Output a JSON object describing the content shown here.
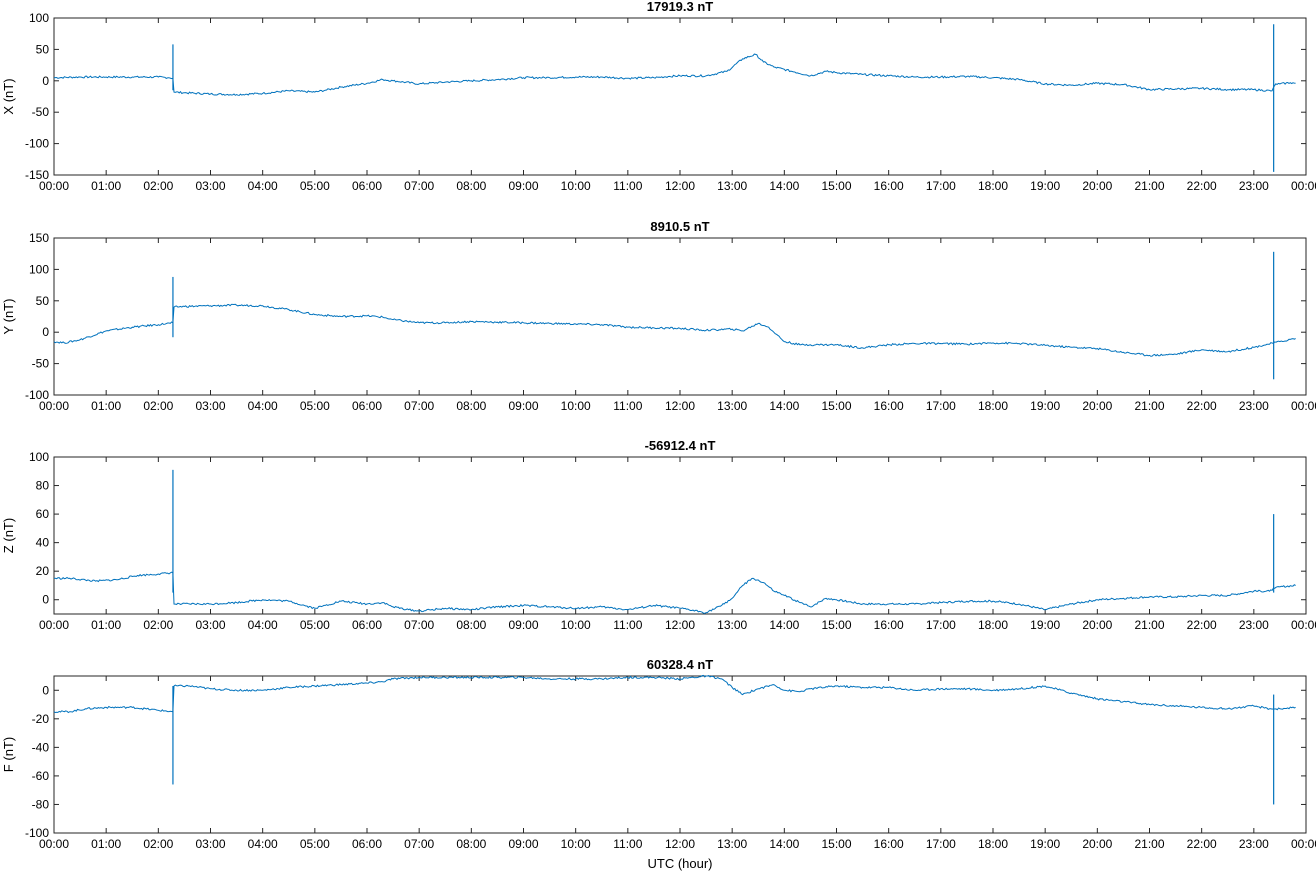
{
  "chart_data": [
    {
      "type": "line",
      "title": "17919.3 nT",
      "ylabel": "X (nT)",
      "xlabel": "",
      "ylim": [
        -150,
        100
      ],
      "yticks": [
        -150,
        -100,
        -50,
        0,
        50,
        100
      ],
      "xlim": [
        0,
        24
      ],
      "xticks": [
        0,
        1,
        2,
        3,
        4,
        5,
        6,
        7,
        8,
        9,
        10,
        11,
        12,
        13,
        14,
        15,
        16,
        17,
        18,
        19,
        20,
        21,
        22,
        23,
        24
      ],
      "xtick_labels": [
        "00:00",
        "01:00",
        "02:00",
        "03:00",
        "04:00",
        "05:00",
        "06:00",
        "07:00",
        "08:00",
        "09:00",
        "10:00",
        "11:00",
        "12:00",
        "13:00",
        "14:00",
        "15:00",
        "16:00",
        "17:00",
        "18:00",
        "19:00",
        "20:00",
        "21:00",
        "22:00",
        "23:00",
        "00:00"
      ],
      "series_color": "#0072bd",
      "x": [
        0,
        0.5,
        1,
        1.5,
        2,
        2.2,
        2.28,
        2.3,
        2.5,
        3,
        3.5,
        4,
        4.5,
        5,
        5.2,
        5.5,
        6,
        6.3,
        6.5,
        7,
        7.5,
        8,
        8.5,
        9,
        9.5,
        10,
        10.5,
        11,
        11.5,
        11.8,
        12,
        12.5,
        12.9,
        13.2,
        13.45,
        13.6,
        13.8,
        14.2,
        14.5,
        14.8,
        15,
        15.5,
        16,
        16.5,
        17,
        17.5,
        18,
        18.5,
        19,
        19.5,
        20,
        20.5,
        21,
        21.5,
        22,
        22.5,
        23,
        23.35,
        23.42,
        23.5,
        23.7,
        23.8
      ],
      "y": [
        5,
        6,
        6,
        6,
        6,
        5,
        4,
        -18,
        -19,
        -21,
        -22,
        -20,
        -16,
        -18,
        -15,
        -10,
        -4,
        2,
        0,
        -5,
        -2,
        0,
        2,
        5,
        5,
        6,
        6,
        4,
        5,
        7,
        8,
        8,
        15,
        35,
        42,
        30,
        22,
        14,
        8,
        15,
        13,
        10,
        8,
        6,
        6,
        7,
        5,
        2,
        -5,
        -7,
        -4,
        -6,
        -14,
        -13,
        -12,
        -14,
        -14,
        -16,
        -5,
        -5,
        -3,
        -4
      ],
      "spikes": [
        {
          "x": 2.28,
          "low": -15,
          "high": 58
        },
        {
          "x": 23.38,
          "low": -145,
          "high": 90
        }
      ]
    },
    {
      "type": "line",
      "title": "8910.5 nT",
      "ylabel": "Y (nT)",
      "xlabel": "",
      "ylim": [
        -100,
        150
      ],
      "yticks": [
        -100,
        -50,
        0,
        50,
        100,
        150
      ],
      "xlim": [
        0,
        24
      ],
      "xticks": [
        0,
        1,
        2,
        3,
        4,
        5,
        6,
        7,
        8,
        9,
        10,
        11,
        12,
        13,
        14,
        15,
        16,
        17,
        18,
        19,
        20,
        21,
        22,
        23,
        24
      ],
      "xtick_labels": [
        "00:00",
        "01:00",
        "02:00",
        "03:00",
        "04:00",
        "05:00",
        "06:00",
        "07:00",
        "08:00",
        "09:00",
        "10:00",
        "11:00",
        "12:00",
        "13:00",
        "14:00",
        "15:00",
        "16:00",
        "17:00",
        "18:00",
        "19:00",
        "20:00",
        "21:00",
        "22:00",
        "23:00",
        "00:00"
      ],
      "series_color": "#0072bd",
      "x": [
        0,
        0.2,
        0.5,
        1,
        1.5,
        2,
        2.28,
        2.3,
        2.5,
        3,
        3.5,
        4,
        4.5,
        5,
        5.5,
        6,
        6.3,
        6.5,
        7,
        7.5,
        8,
        8.5,
        9,
        9.5,
        10,
        10.5,
        11,
        11.5,
        12,
        12.5,
        13,
        13.2,
        13.5,
        13.7,
        14,
        14.3,
        14.5,
        15,
        15.5,
        16,
        16.5,
        17,
        17.5,
        18,
        18.5,
        19,
        19.5,
        20,
        20.5,
        21,
        21.5,
        22,
        22.5,
        23,
        23.5,
        23.8
      ],
      "y": [
        -15,
        -17,
        -12,
        2,
        8,
        12,
        15,
        40,
        41,
        42,
        43,
        42,
        36,
        28,
        25,
        26,
        24,
        20,
        15,
        15,
        17,
        16,
        15,
        14,
        13,
        12,
        8,
        7,
        6,
        3,
        5,
        2,
        14,
        8,
        -15,
        -20,
        -20,
        -20,
        -25,
        -20,
        -18,
        -18,
        -19,
        -17,
        -18,
        -21,
        -24,
        -26,
        -32,
        -37,
        -35,
        -28,
        -31,
        -24,
        -15,
        -10
      ],
      "spikes": [
        {
          "x": 2.28,
          "low": -8,
          "high": 88
        },
        {
          "x": 23.38,
          "low": -75,
          "high": 128
        }
      ]
    },
    {
      "type": "line",
      "title": "-56912.4 nT",
      "ylabel": "Z (nT)",
      "xlabel": "",
      "ylim": [
        -10,
        100
      ],
      "yticks": [
        0,
        20,
        40,
        60,
        80,
        100
      ],
      "xlim": [
        0,
        24
      ],
      "xticks": [
        0,
        1,
        2,
        3,
        4,
        5,
        6,
        7,
        8,
        9,
        10,
        11,
        12,
        13,
        14,
        15,
        16,
        17,
        18,
        19,
        20,
        21,
        22,
        23,
        24
      ],
      "xtick_labels": [
        "00:00",
        "01:00",
        "02:00",
        "03:00",
        "04:00",
        "05:00",
        "06:00",
        "07:00",
        "08:00",
        "09:00",
        "10:00",
        "11:00",
        "12:00",
        "13:00",
        "14:00",
        "15:00",
        "16:00",
        "17:00",
        "18:00",
        "19:00",
        "20:00",
        "21:00",
        "22:00",
        "23:00",
        "00:00"
      ],
      "series_color": "#0072bd",
      "x": [
        0,
        0.3,
        0.8,
        1.2,
        1.6,
        2,
        2.28,
        2.3,
        2.6,
        3,
        3.5,
        4,
        4.5,
        5,
        5.2,
        5.5,
        6,
        6.3,
        6.5,
        6.8,
        7,
        7.5,
        8,
        8.5,
        9,
        9.5,
        10,
        10.5,
        11,
        11.5,
        12,
        12.5,
        12.8,
        13,
        13.2,
        13.4,
        13.6,
        13.8,
        14,
        14.3,
        14.5,
        14.8,
        15,
        15.5,
        16,
        16.5,
        17,
        17.5,
        18,
        18.5,
        19,
        19.5,
        20,
        20.5,
        21,
        21.5,
        22,
        22.5,
        23,
        23.3,
        23.4,
        23.5,
        23.8
      ],
      "y": [
        15,
        15,
        13,
        14,
        17,
        18,
        19,
        -3,
        -3,
        -3,
        -2,
        0,
        -1,
        -6,
        -4,
        -1,
        -3,
        -2,
        -5,
        -7,
        -8,
        -6,
        -7,
        -5,
        -4,
        -5,
        -6,
        -5,
        -7,
        -4,
        -6,
        -9,
        -4,
        1,
        10,
        15,
        12,
        6,
        3,
        -2,
        -5,
        1,
        0,
        -3,
        -3,
        -3,
        -2,
        -1,
        -1,
        -3,
        -7,
        -3,
        0,
        1,
        2,
        2,
        3,
        3,
        6,
        6,
        8,
        9,
        10
      ],
      "spikes": [
        {
          "x": 2.28,
          "low": 5,
          "high": 91
        },
        {
          "x": 23.38,
          "low": 5,
          "high": 60
        }
      ]
    },
    {
      "type": "line",
      "title": "60328.4 nT",
      "ylabel": "F (nT)",
      "xlabel": "UTC (hour)",
      "ylim": [
        -100,
        10
      ],
      "yticks": [
        -100,
        -80,
        -60,
        -40,
        -20,
        0
      ],
      "xlim": [
        0,
        24
      ],
      "xticks": [
        0,
        1,
        2,
        3,
        4,
        5,
        6,
        7,
        8,
        9,
        10,
        11,
        12,
        13,
        14,
        15,
        16,
        17,
        18,
        19,
        20,
        21,
        22,
        23,
        24
      ],
      "xtick_labels": [
        "00:00",
        "01:00",
        "02:00",
        "03:00",
        "04:00",
        "05:00",
        "06:00",
        "07:00",
        "08:00",
        "09:00",
        "10:00",
        "11:00",
        "12:00",
        "13:00",
        "14:00",
        "15:00",
        "16:00",
        "17:00",
        "18:00",
        "19:00",
        "20:00",
        "21:00",
        "22:00",
        "23:00",
        "00:00"
      ],
      "series_color": "#0072bd",
      "x": [
        0,
        0.3,
        0.6,
        1,
        1.5,
        2,
        2.28,
        2.3,
        2.6,
        3,
        3.5,
        4,
        4.5,
        5,
        5.5,
        6,
        6.3,
        6.5,
        7,
        7.5,
        8,
        8.5,
        9,
        9.5,
        10,
        10.5,
        11,
        11.5,
        12,
        12.5,
        12.8,
        13,
        13.2,
        13.5,
        13.8,
        14,
        14.3,
        14.5,
        15,
        15.5,
        16,
        16.5,
        17,
        17.5,
        18,
        18.5,
        19,
        19.5,
        20,
        20.5,
        21,
        21.5,
        22,
        22.5,
        23,
        23.3,
        23.5,
        23.8
      ],
      "y": [
        -15,
        -15,
        -13,
        -12,
        -12,
        -14,
        -15,
        3,
        3,
        1,
        0,
        0,
        2,
        3,
        4,
        5,
        6,
        8,
        9,
        9,
        9,
        9,
        9,
        8,
        8,
        8,
        9,
        9,
        8,
        10,
        8,
        2,
        -3,
        1,
        4,
        0,
        -1,
        1,
        3,
        2,
        2,
        0,
        1,
        1,
        0,
        1,
        3,
        -2,
        -6,
        -8,
        -10,
        -11,
        -12,
        -13,
        -11,
        -13,
        -13,
        -12
      ],
      "spikes": [
        {
          "x": 2.28,
          "low": -66,
          "high": 3
        },
        {
          "x": 23.38,
          "low": -80,
          "high": -3
        }
      ]
    }
  ]
}
